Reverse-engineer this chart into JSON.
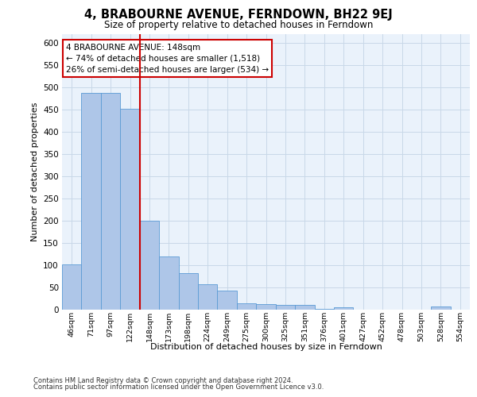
{
  "title": "4, BRABOURNE AVENUE, FERNDOWN, BH22 9EJ",
  "subtitle": "Size of property relative to detached houses in Ferndown",
  "xlabel": "Distribution of detached houses by size in Ferndown",
  "ylabel": "Number of detached properties",
  "categories": [
    "46sqm",
    "71sqm",
    "97sqm",
    "122sqm",
    "148sqm",
    "173sqm",
    "198sqm",
    "224sqm",
    "249sqm",
    "275sqm",
    "300sqm",
    "325sqm",
    "351sqm",
    "376sqm",
    "401sqm",
    "427sqm",
    "452sqm",
    "478sqm",
    "503sqm",
    "528sqm",
    "554sqm"
  ],
  "values": [
    101,
    487,
    487,
    452,
    200,
    120,
    82,
    57,
    42,
    15,
    13,
    10,
    10,
    2,
    5,
    0,
    0,
    0,
    0,
    8,
    0
  ],
  "bar_color": "#aec6e8",
  "bar_edge_color": "#5b9bd5",
  "grid_color": "#c8d8e8",
  "background_color": "#eaf2fb",
  "vline_x_index": 4,
  "vline_color": "#cc0000",
  "annotation_text": "4 BRABOURNE AVENUE: 148sqm\n← 74% of detached houses are smaller (1,518)\n26% of semi-detached houses are larger (534) →",
  "annotation_box_color": "#ffffff",
  "annotation_box_edge": "#cc0000",
  "ylim": [
    0,
    620
  ],
  "yticks": [
    0,
    50,
    100,
    150,
    200,
    250,
    300,
    350,
    400,
    450,
    500,
    550,
    600
  ],
  "footer1": "Contains HM Land Registry data © Crown copyright and database right 2024.",
  "footer2": "Contains public sector information licensed under the Open Government Licence v3.0."
}
